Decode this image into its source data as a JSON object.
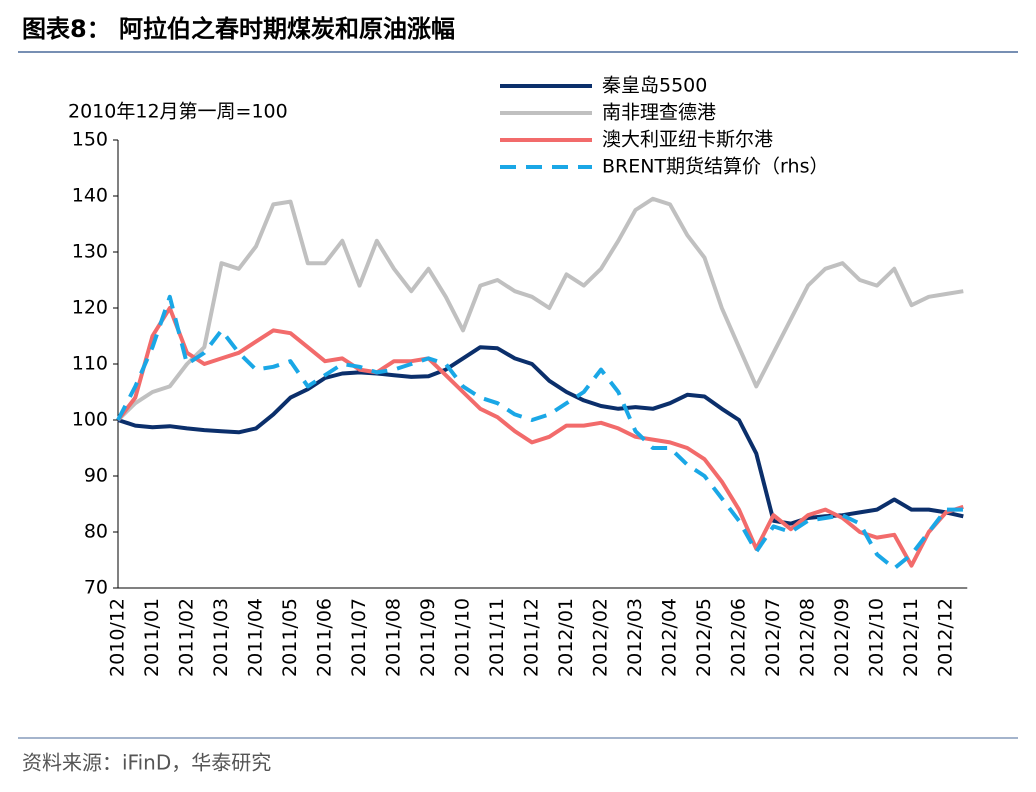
{
  "chart_data": {
    "type": "line",
    "title": "图表8：  阿拉伯之春时期煤炭和原油涨幅",
    "y_label": "2010年12月第一周=100",
    "source": "资料来源：iFinD，华泰研究",
    "categories": [
      "2010/12",
      null,
      "2011/01",
      null,
      "2011/02",
      null,
      "2011/03",
      null,
      "2011/04",
      null,
      "2011/05",
      null,
      "2011/06",
      null,
      "2011/07",
      null,
      "2011/08",
      null,
      "2011/09",
      null,
      "2011/10",
      null,
      "2011/11",
      null,
      "2011/12",
      null,
      "2012/01",
      null,
      "2012/02",
      null,
      "2012/03",
      null,
      "2012/04",
      null,
      "2012/05",
      null,
      "2012/06",
      null,
      "2012/07",
      null,
      "2012/08",
      null,
      "2012/09",
      null,
      "2012/10",
      null,
      "2012/11",
      null,
      "2012/12",
      null
    ],
    "ylim": [
      70,
      150
    ],
    "yticks": [
      70,
      80,
      90,
      100,
      110,
      120,
      130,
      140,
      150
    ],
    "series": [
      {
        "name": "秦皇岛5500",
        "color": "#0b2f6b",
        "dash": false,
        "values": [
          100,
          99,
          98.7,
          98.9,
          98.5,
          98.2,
          98,
          97.8,
          98.5,
          101,
          104,
          105.5,
          107.5,
          108.3,
          108.5,
          108.3,
          108,
          107.7,
          107.8,
          109,
          111,
          113,
          112.8,
          111,
          110,
          107,
          105,
          103.5,
          102.5,
          102,
          102.3,
          102,
          103,
          104.5,
          104.2,
          102,
          100,
          94,
          82,
          81.5,
          82.5,
          82.8,
          83,
          83.5,
          84,
          85.8,
          84,
          84,
          83.5,
          82.8
        ]
      },
      {
        "name": "南非理查德港",
        "color": "#c0c0c0",
        "dash": false,
        "values": [
          100,
          103,
          105,
          106,
          110,
          113,
          128,
          127,
          131,
          138.5,
          139,
          128,
          128,
          132,
          124,
          132,
          127,
          123,
          127,
          122,
          116,
          124,
          125,
          123,
          122,
          120,
          126,
          124,
          127,
          132,
          137.5,
          139.5,
          138.5,
          133,
          129,
          120,
          113,
          106,
          112,
          118,
          124,
          127,
          128,
          125,
          124,
          127,
          120.5,
          122,
          122.5,
          123
        ]
      },
      {
        "name": "澳大利亚纽卡斯尔港",
        "color": "#f26b6b",
        "dash": false,
        "values": [
          100,
          104,
          115,
          120,
          112,
          110,
          111,
          112,
          114,
          116,
          115.5,
          113,
          110.5,
          111,
          109,
          108.5,
          110.5,
          110.5,
          111,
          108,
          105,
          102,
          100.5,
          98,
          96,
          97,
          99,
          99,
          99.5,
          98.5,
          97,
          96.5,
          96,
          95,
          93,
          89,
          84,
          77,
          83,
          80.5,
          83,
          84,
          82.5,
          80,
          79,
          79.5,
          74,
          80,
          83.5,
          84.5
        ]
      },
      {
        "name": "BRENT期货结算价（rhs）",
        "color": "#1aa7e6",
        "dash": true,
        "values": [
          100,
          106,
          113,
          122,
          110,
          112,
          116,
          112,
          109,
          109.5,
          110.5,
          106,
          108,
          110,
          109.5,
          108.5,
          109,
          110,
          111,
          110,
          106,
          104,
          103,
          101,
          100,
          101,
          103,
          105,
          109,
          105,
          98,
          95,
          95,
          92,
          90,
          86,
          82,
          76.5,
          81,
          80,
          82,
          82.5,
          83,
          81.5,
          76,
          73.5,
          76,
          80,
          84,
          84
        ]
      }
    ]
  }
}
